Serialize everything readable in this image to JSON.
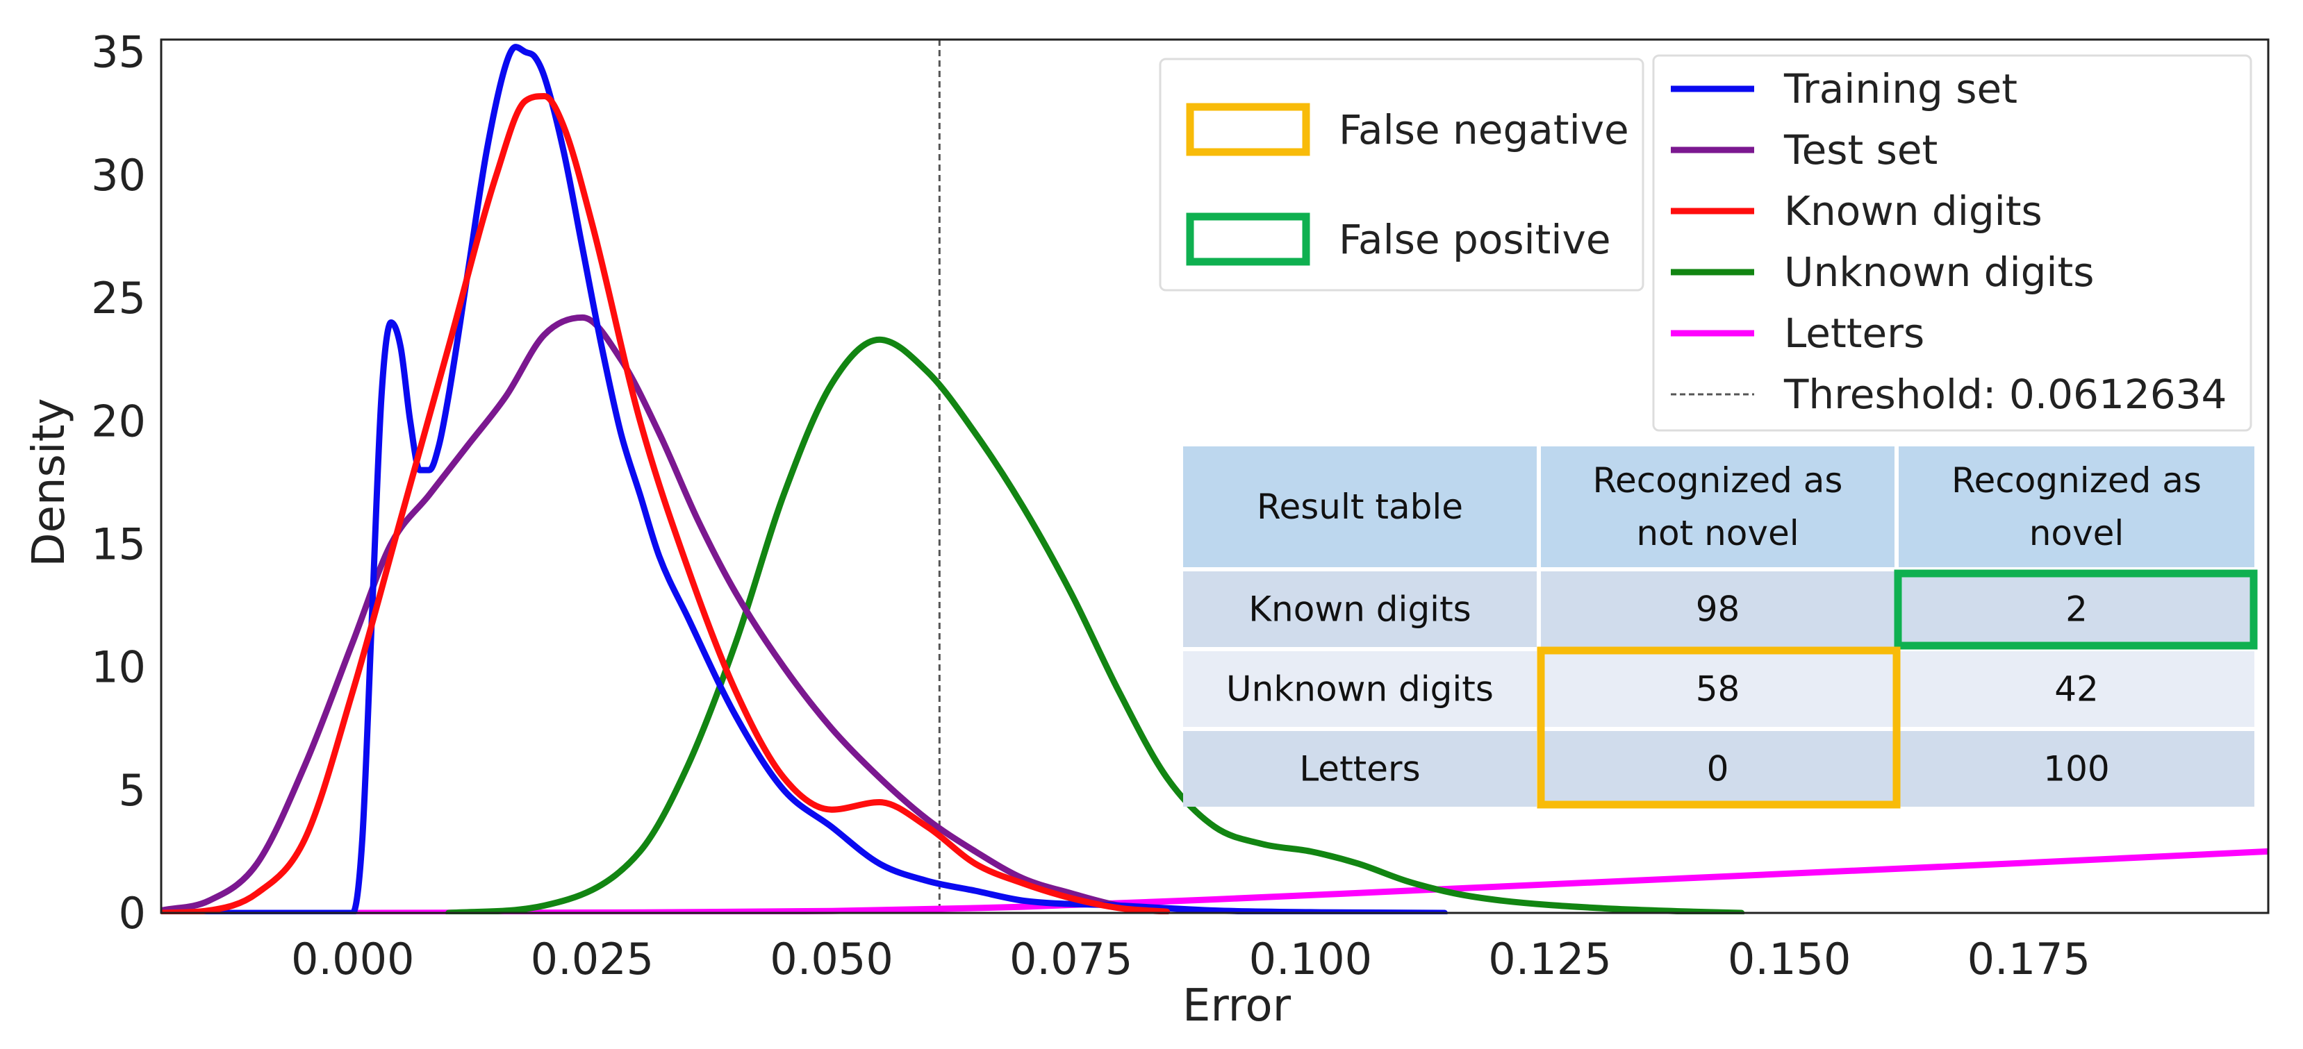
{
  "chart_data": {
    "type": "line",
    "title": "",
    "xlabel": "Error",
    "ylabel": "Density",
    "xlim": [
      -0.02,
      0.2
    ],
    "ylim": [
      0,
      35.5
    ],
    "xticks": [
      0.0,
      0.025,
      0.05,
      0.075,
      0.1,
      0.125,
      0.15,
      0.175
    ],
    "xtick_labels": [
      "0.000",
      "0.025",
      "0.050",
      "0.075",
      "0.100",
      "0.125",
      "0.150",
      "0.175"
    ],
    "yticks": [
      0,
      5,
      10,
      15,
      20,
      25,
      30,
      35
    ],
    "ytick_labels": [
      "0",
      "5",
      "10",
      "15",
      "20",
      "25",
      "30",
      "35"
    ],
    "grid": false,
    "legend_position": "top-right",
    "threshold": {
      "label": "Threshold: 0.0612634",
      "value": 0.0612634,
      "color": "#555555"
    },
    "series": [
      {
        "name": "Training set",
        "color": "#0a0af0",
        "x": [
          -0.02,
          0.0,
          0.001,
          0.002,
          0.003,
          0.004,
          0.005,
          0.006,
          0.007,
          0.008,
          0.009,
          0.01,
          0.012,
          0.014,
          0.016,
          0.017,
          0.018,
          0.019,
          0.02,
          0.022,
          0.024,
          0.026,
          0.028,
          0.03,
          0.032,
          0.035,
          0.04,
          0.045,
          0.05,
          0.055,
          0.06,
          0.065,
          0.07,
          0.08,
          0.09,
          0.1,
          0.114
        ],
        "y": [
          0,
          0,
          3,
          12,
          21,
          24,
          23,
          20,
          18,
          18,
          19,
          21,
          26,
          31,
          34.5,
          35.2,
          35,
          34.8,
          34,
          31,
          27,
          23,
          19.5,
          17,
          14.5,
          12,
          8,
          5,
          3.5,
          2,
          1.3,
          0.9,
          0.5,
          0.3,
          0.1,
          0.03,
          0
        ]
      },
      {
        "name": "Test set",
        "color": "#7b1890",
        "x": [
          -0.02,
          -0.015,
          -0.01,
          -0.005,
          0.0,
          0.004,
          0.008,
          0.012,
          0.016,
          0.02,
          0.024,
          0.028,
          0.032,
          0.036,
          0.04,
          0.045,
          0.05,
          0.055,
          0.06,
          0.065,
          0.07,
          0.075,
          0.08,
          0.085
        ],
        "y": [
          0.1,
          0.5,
          2,
          6,
          11,
          15,
          17,
          19,
          21,
          23.5,
          24.2,
          22.5,
          19.5,
          16,
          13,
          10,
          7.5,
          5.5,
          3.8,
          2.5,
          1.4,
          0.8,
          0.3,
          0.1
        ]
      },
      {
        "name": "Known digits",
        "color": "#ff0d0d",
        "x": [
          -0.02,
          -0.015,
          -0.01,
          -0.005,
          0.0,
          0.005,
          0.01,
          0.015,
          0.018,
          0.02,
          0.022,
          0.025,
          0.03,
          0.035,
          0.04,
          0.045,
          0.05,
          0.055,
          0.06,
          0.065,
          0.07,
          0.075,
          0.08,
          0.085
        ],
        "y": [
          0,
          0.1,
          0.8,
          3,
          9,
          16,
          23,
          30,
          33,
          33.2,
          32,
          28,
          20,
          14,
          9,
          5.5,
          4.2,
          4.5,
          3.5,
          2,
          1.2,
          0.6,
          0.2,
          0.05
        ]
      },
      {
        "name": "Unknown digits",
        "color": "#128512",
        "x": [
          0.01,
          0.02,
          0.03,
          0.035,
          0.04,
          0.045,
          0.05,
          0.055,
          0.06,
          0.065,
          0.07,
          0.075,
          0.08,
          0.085,
          0.09,
          0.095,
          0.1,
          0.105,
          0.11,
          0.115,
          0.12,
          0.13,
          0.14,
          0.145
        ],
        "y": [
          0,
          0.3,
          2.5,
          6,
          11,
          17,
          21.5,
          23.3,
          22,
          19.5,
          16.5,
          13,
          9,
          5.5,
          3.5,
          2.8,
          2.5,
          2,
          1.3,
          0.8,
          0.5,
          0.2,
          0.05,
          0
        ]
      },
      {
        "name": "Letters",
        "color": "#ff00ff",
        "x": [
          -0.02,
          0.0,
          0.03,
          0.05,
          0.07,
          0.09,
          0.11,
          0.13,
          0.15,
          0.17,
          0.2
        ],
        "y": [
          0,
          0,
          0.02,
          0.08,
          0.25,
          0.55,
          0.9,
          1.25,
          1.6,
          1.95,
          2.5
        ]
      }
    ]
  },
  "marker_legend": [
    {
      "label": "False negative",
      "color": "#f8bb09"
    },
    {
      "label": "False positive",
      "color": "#0fb050"
    }
  ],
  "result_table": {
    "header": [
      "Result table",
      "Recognized as\nnot novel",
      "Recognized as\nnovel"
    ],
    "rows": [
      [
        "Known digits",
        "98",
        "2"
      ],
      [
        "Unknown digits",
        "58",
        "42"
      ],
      [
        "Letters",
        "0",
        "100"
      ]
    ],
    "header_color": "#bdd7ee",
    "row_colors": [
      "#d0dcec",
      "#e8edf6",
      "#d0dcec"
    ],
    "highlights": [
      {
        "label": "False positive",
        "color": "#0fb050"
      },
      {
        "label": "False negative",
        "color": "#f8bb09"
      }
    ]
  }
}
